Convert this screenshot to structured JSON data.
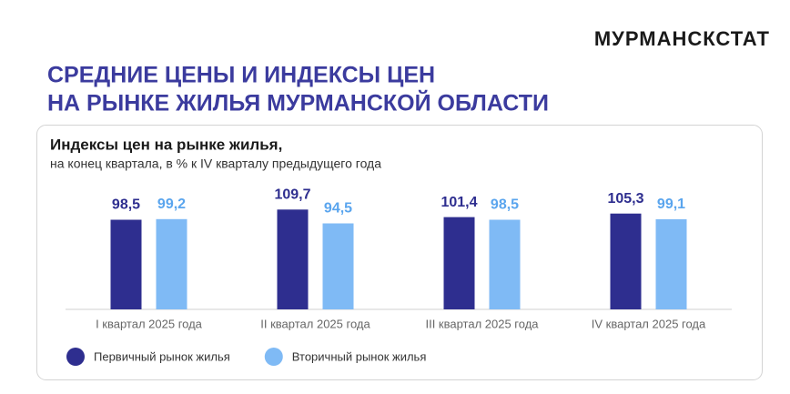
{
  "brand": "МУРМАНСКСТАТ",
  "title_lines": [
    "СРЕДНИЕ ЦЕНЫ И ИНДЕКСЫ ЦЕН",
    "НА РЫНКЕ ЖИЛЬЯ МУРМАНСКОЙ ОБЛАСТИ"
  ],
  "chart_data": {
    "type": "bar",
    "title": "Индексы цен на рынке жилья,",
    "subtitle": "на конец квартала, в % к IV кварталу предыдущего года",
    "categories": [
      "I квартал 2025 года",
      "II квартал 2025 года",
      "III квартал 2025 года",
      "IV квартал 2025 года"
    ],
    "series": [
      {
        "name": "Первичный рынок жилья",
        "color": "#2e2e8f",
        "values": [
          98.5,
          109.7,
          101.4,
          105.3
        ],
        "value_labels": [
          "98,5",
          "109,7",
          "101,4",
          "105,3"
        ],
        "label_color": "#2e2e8f"
      },
      {
        "name": "Вторичный рынок жилья",
        "color": "#7fbaf5",
        "values": [
          99.2,
          94.5,
          98.5,
          99.1
        ],
        "value_labels": [
          "99,2",
          "94,5",
          "98,5",
          "99,1"
        ],
        "label_color": "#5aa5ee"
      }
    ],
    "legend": "bottom-left"
  }
}
